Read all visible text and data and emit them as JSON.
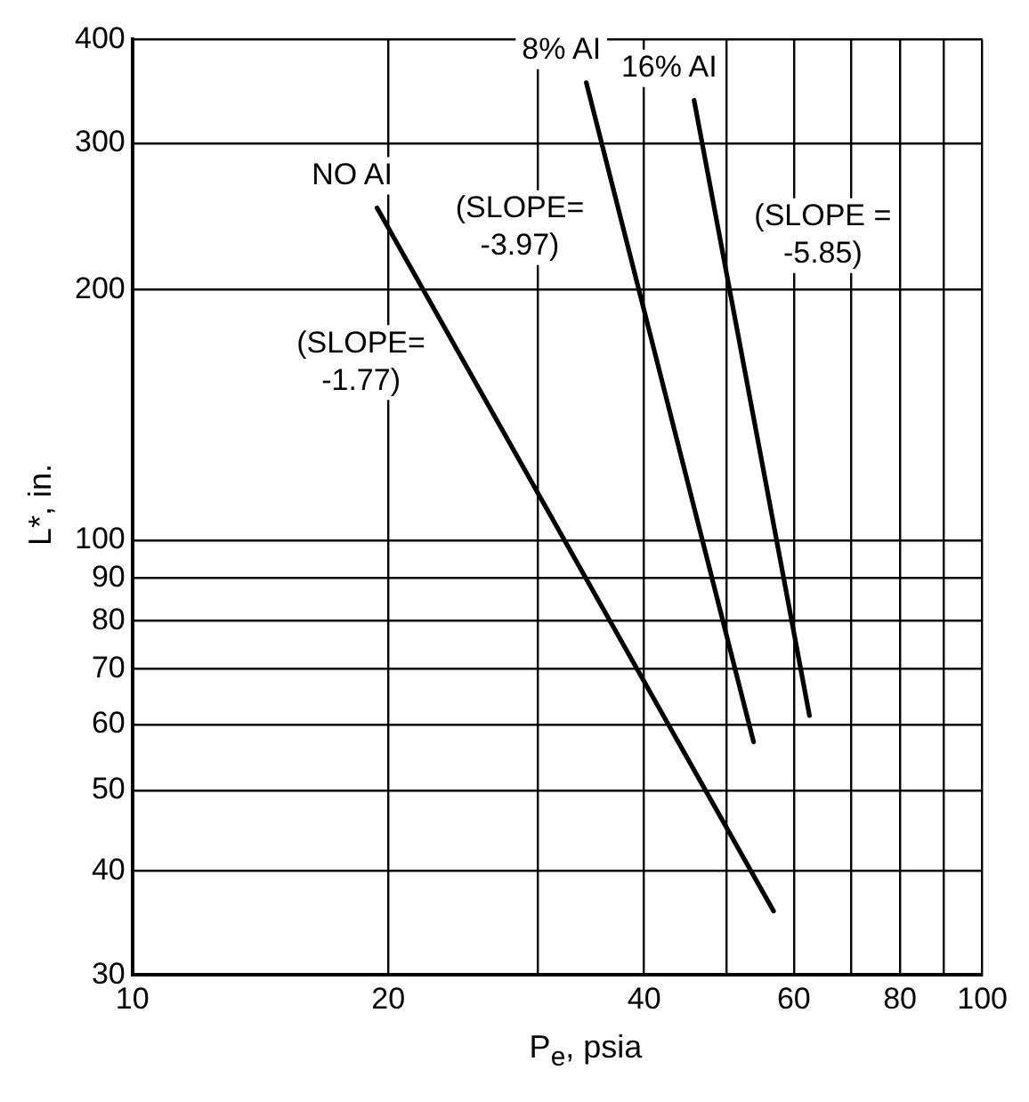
{
  "chart_data": {
    "type": "line",
    "xlabel": "P$_{e}$, psia",
    "ylabel": "L*, in.",
    "log": "xy",
    "grid": true,
    "legend": false,
    "marker": "none",
    "line_style": "solid",
    "xlim": [
      10,
      100
    ],
    "xticks": [
      10,
      20,
      {
        "value": 30,
        "label": null
      },
      40,
      {
        "value": 50,
        "label": null
      },
      60,
      {
        "value": 70,
        "label": null
      },
      80,
      {
        "value": 90,
        "label": null
      },
      100
    ],
    "ylim": [
      30,
      400
    ],
    "yticks": [
      30,
      40,
      50,
      60,
      70,
      80,
      90,
      100,
      200,
      300,
      400
    ],
    "series": [
      {
        "name": "NO AI",
        "color": "#000000",
        "x": [
          19.4,
          56.8
        ],
        "values": [
          251,
          35.8
        ]
      },
      {
        "name": "8% AI",
        "color": "#000000",
        "x": [
          34.2,
          53.8
        ],
        "values": [
          355,
          57.2
        ]
      },
      {
        "name": "16% AI",
        "color": "#000000",
        "x": [
          45.8,
          62.6
        ],
        "values": [
          338,
          61.5
        ]
      }
    ],
    "annotations": [
      "(SLOPE=\n-1.77)",
      "(SLOPE=\n-3.97)",
      "(SLOPE =\n-5.85)"
    ]
  }
}
